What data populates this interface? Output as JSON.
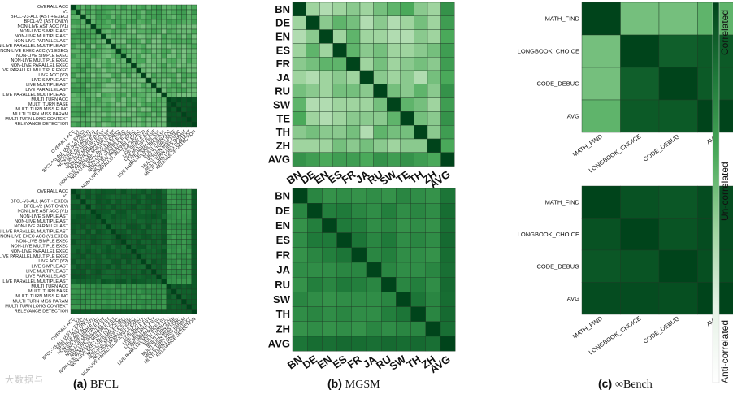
{
  "captions": [
    {
      "prefix": "(a)",
      "text": "BFCL"
    },
    {
      "prefix": "(b)",
      "text": "MGSM"
    },
    {
      "prefix": "(c)",
      "text": "∞Bench"
    }
  ],
  "colorbar": {
    "top_label": "Correlated",
    "mid_label": "Un-correlated",
    "bottom_label": "Anti-correlated",
    "colors": [
      "#ffffff",
      "#e6f2e6",
      "#9fd49f",
      "#4aa95a",
      "#1f7a3a",
      "#00441b"
    ]
  },
  "watermark": "大数据与",
  "chart_data": [
    {
      "type": "heatmap",
      "panel": "a-top",
      "labels": [
        "OVERALL ACC",
        "V1",
        "BFCL-V3-ALL (AST + EXEC)",
        "BFCL-V2 (AST ONLY)",
        "NON-LIVE AST ACC (V1)",
        "NON-LIVE SIMPLE AST",
        "NON-LIVE MULTIPLE AST",
        "NON-LIVE PARALLEL AST",
        "NON-LIVE PARALLEL MULTIPLE AST",
        "NON-LIVE EXEC ACC (V1 EXEC)",
        "NON-LIVE SIMPLE EXEC",
        "NON-LIVE MULTIPLE EXEC",
        "NON-LIVE PARALLEL EXEC",
        "NON-LIVE PARALLEL MULTIPLE EXEC",
        "LIVE ACC (V2)",
        "LIVE SIMPLE AST",
        "LIVE MULTIPLE AST",
        "LIVE PARALLEL AST",
        "LIVE PARALLEL MULTIPLE AST",
        "MULTI TURN ACC",
        "MULTI TURN BASE",
        "MULTI TURN MISS FUNC",
        "MULTI TURN MISS PARAM",
        "MULTI TURN LONG CONTEXT",
        "RELEVANCE DETECTION"
      ]
    },
    {
      "type": "heatmap",
      "panel": "a-bottom",
      "labels": [
        "OVERALL ACC",
        "V1",
        "BFCL-V3-ALL (AST + EXEC)",
        "BFCL-V2 (AST ONLY)",
        "NON-LIVE AST ACC (V1)",
        "NON-LIVE SIMPLE AST",
        "NON-LIVE MULTIPLE AST",
        "NON-LIVE PARALLEL AST",
        "NON-LIVE PARALLEL MULTIPLE AST",
        "NON-LIVE EXEC ACC (V1 EXEC)",
        "NON-LIVE SIMPLE EXEC",
        "NON-LIVE MULTIPLE EXEC",
        "NON-LIVE PARALLEL EXEC",
        "NON-LIVE PARALLEL MULTIPLE EXEC",
        "LIVE ACC (V2)",
        "LIVE SIMPLE AST",
        "LIVE MULTIPLE AST",
        "LIVE PARALLEL AST",
        "LIVE PARALLEL MULTIPLE AST",
        "MULTI TURN ACC",
        "MULTI TURN BASE",
        "MULTI TURN MISS FUNC",
        "MULTI TURN MISS PARAM",
        "MULTI TURN LONG CONTEXT",
        "RELEVANCE DETECTION"
      ]
    },
    {
      "type": "heatmap",
      "panel": "b-top",
      "labels": [
        "BN",
        "DE",
        "EN",
        "ES",
        "FR",
        "JA",
        "RU",
        "SW",
        "TE",
        "TH",
        "ZH",
        "AVG"
      ],
      "values": [
        [
          1.0,
          0.4,
          0.35,
          0.4,
          0.45,
          0.4,
          0.5,
          0.55,
          0.6,
          0.45,
          0.4,
          0.7
        ],
        [
          0.4,
          1.0,
          0.45,
          0.55,
          0.5,
          0.35,
          0.45,
          0.35,
          0.4,
          0.5,
          0.4,
          0.65
        ],
        [
          0.35,
          0.45,
          1.0,
          0.4,
          0.55,
          0.4,
          0.4,
          0.35,
          0.35,
          0.45,
          0.4,
          0.6
        ],
        [
          0.4,
          0.55,
          0.4,
          1.0,
          0.55,
          0.45,
          0.5,
          0.4,
          0.4,
          0.45,
          0.5,
          0.65
        ],
        [
          0.45,
          0.5,
          0.55,
          0.55,
          1.0,
          0.4,
          0.5,
          0.4,
          0.45,
          0.5,
          0.45,
          0.65
        ],
        [
          0.4,
          0.35,
          0.4,
          0.45,
          0.4,
          1.0,
          0.45,
          0.4,
          0.45,
          0.35,
          0.5,
          0.6
        ],
        [
          0.5,
          0.45,
          0.4,
          0.5,
          0.5,
          0.45,
          1.0,
          0.5,
          0.45,
          0.55,
          0.45,
          0.7
        ],
        [
          0.55,
          0.35,
          0.35,
          0.4,
          0.4,
          0.4,
          0.5,
          1.0,
          0.55,
          0.5,
          0.4,
          0.65
        ],
        [
          0.6,
          0.4,
          0.35,
          0.4,
          0.45,
          0.45,
          0.45,
          0.55,
          1.0,
          0.5,
          0.45,
          0.7
        ],
        [
          0.45,
          0.5,
          0.45,
          0.45,
          0.5,
          0.35,
          0.55,
          0.5,
          0.5,
          1.0,
          0.45,
          0.65
        ],
        [
          0.4,
          0.4,
          0.4,
          0.5,
          0.45,
          0.5,
          0.45,
          0.4,
          0.45,
          0.45,
          1.0,
          0.6
        ],
        [
          0.7,
          0.65,
          0.6,
          0.65,
          0.65,
          0.6,
          0.7,
          0.65,
          0.7,
          0.65,
          0.6,
          1.0
        ]
      ]
    },
    {
      "type": "heatmap",
      "panel": "b-bottom",
      "labels": [
        "BN",
        "DE",
        "EN",
        "ES",
        "FR",
        "JA",
        "RU",
        "SW",
        "TH",
        "ZH",
        "AVG"
      ],
      "values": [
        [
          1.0,
          0.75,
          0.7,
          0.72,
          0.7,
          0.72,
          0.7,
          0.75,
          0.72,
          0.7,
          0.82
        ],
        [
          0.75,
          1.0,
          0.78,
          0.8,
          0.75,
          0.72,
          0.78,
          0.72,
          0.75,
          0.72,
          0.85
        ],
        [
          0.7,
          0.78,
          1.0,
          0.8,
          0.78,
          0.72,
          0.75,
          0.7,
          0.72,
          0.7,
          0.84
        ],
        [
          0.72,
          0.8,
          0.8,
          1.0,
          0.82,
          0.75,
          0.8,
          0.72,
          0.75,
          0.72,
          0.86
        ],
        [
          0.7,
          0.75,
          0.78,
          0.82,
          1.0,
          0.75,
          0.78,
          0.72,
          0.72,
          0.7,
          0.85
        ],
        [
          0.72,
          0.72,
          0.72,
          0.75,
          0.75,
          1.0,
          0.75,
          0.72,
          0.72,
          0.75,
          0.84
        ],
        [
          0.7,
          0.78,
          0.75,
          0.8,
          0.78,
          0.75,
          1.0,
          0.75,
          0.78,
          0.72,
          0.86
        ],
        [
          0.75,
          0.72,
          0.7,
          0.72,
          0.72,
          0.72,
          0.75,
          1.0,
          0.82,
          0.75,
          0.85
        ],
        [
          0.72,
          0.75,
          0.72,
          0.75,
          0.72,
          0.72,
          0.78,
          0.82,
          1.0,
          0.75,
          0.86
        ],
        [
          0.7,
          0.72,
          0.7,
          0.72,
          0.7,
          0.75,
          0.72,
          0.75,
          0.75,
          1.0,
          0.84
        ],
        [
          0.82,
          0.85,
          0.84,
          0.86,
          0.85,
          0.84,
          0.86,
          0.85,
          0.86,
          0.84,
          1.0
        ]
      ]
    },
    {
      "type": "heatmap",
      "panel": "c-top",
      "labels": [
        "MATH_FIND",
        "LONGBOOK_CHOICE",
        "CODE_DEBUG",
        "AVG"
      ],
      "values": [
        [
          1.0,
          0.5,
          0.5,
          0.55
        ],
        [
          0.5,
          1.0,
          0.9,
          0.92
        ],
        [
          0.5,
          0.9,
          1.0,
          0.92
        ],
        [
          0.55,
          0.92,
          0.92,
          1.0
        ]
      ]
    },
    {
      "type": "heatmap",
      "panel": "c-bottom",
      "labels": [
        "MATH_FIND",
        "LONGBOOK_CHOICE",
        "CODE_DEBUG",
        "AVG"
      ],
      "values": [
        [
          1.0,
          0.95,
          0.93,
          0.97
        ],
        [
          0.95,
          1.0,
          0.94,
          0.97
        ],
        [
          0.93,
          0.94,
          1.0,
          0.96
        ],
        [
          0.97,
          0.97,
          0.96,
          1.0
        ]
      ]
    }
  ]
}
